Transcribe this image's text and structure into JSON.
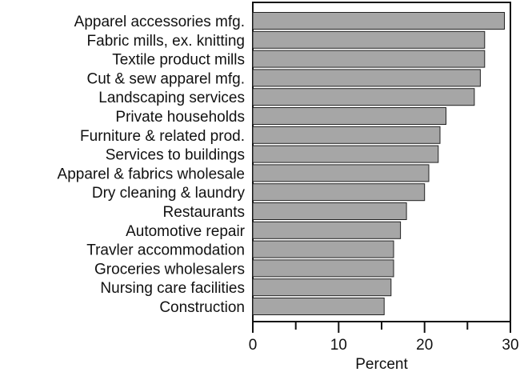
{
  "chart_data": {
    "type": "bar",
    "orientation": "horizontal",
    "categories": [
      "Apparel accessories mfg.",
      "Fabric mills, ex. knitting",
      "Textile product mills",
      "Cut & sew apparel mfg.",
      "Landscaping services",
      "Private households",
      "Furniture & related prod.",
      "Services to buildings",
      "Apparel & fabrics wholesale",
      "Dry cleaning & laundry",
      "Restaurants",
      "Automotive repair",
      "Travler accommodation",
      "Groceries wholesalers",
      "Nursing care facilities",
      "Construction"
    ],
    "values": [
      29.3,
      27.0,
      27.0,
      26.5,
      25.8,
      22.5,
      21.8,
      21.6,
      20.5,
      20.0,
      17.9,
      17.2,
      16.4,
      16.4,
      16.1,
      15.3
    ],
    "xlabel": "Percent",
    "ylabel": "",
    "title": "",
    "xlim": [
      0,
      30
    ],
    "xticks": [
      "0",
      "10",
      "20",
      "30"
    ],
    "minor_ticks": [
      5,
      15,
      25
    ],
    "grid": false,
    "bar_color": "#a6a6a6",
    "bar_edge_color": "#222222"
  }
}
